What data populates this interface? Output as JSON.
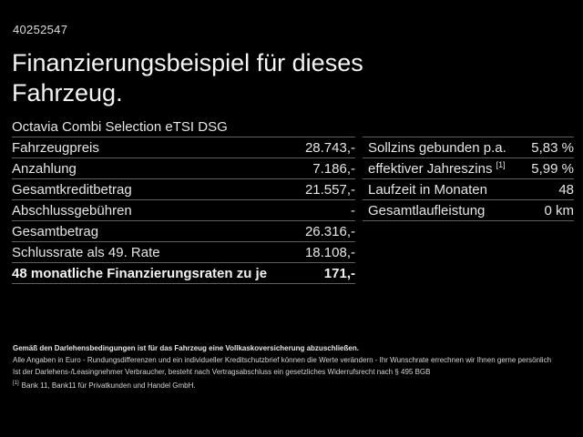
{
  "meta": {
    "vehicle_id": "40252547"
  },
  "header": {
    "title_line1": "Finanzierungsbeispiel für dieses",
    "title_line2": "Fahrzeug.",
    "subtitle": "Octavia Combi Selection eTSI DSG"
  },
  "finance_table": {
    "rows": [
      {
        "label": "Fahrzeugpreis",
        "value": "28.743,-"
      },
      {
        "label": "Anzahlung",
        "value": "7.186,-"
      },
      {
        "label": "Gesamtkreditbetrag",
        "value": "21.557,-"
      },
      {
        "label": "Abschlussgebühren",
        "value": "-"
      },
      {
        "label": "Gesamtbetrag",
        "value": "26.316,-"
      },
      {
        "label": "Schlussrate als 49. Rate",
        "value": "18.108,-"
      }
    ],
    "total_row": {
      "label": "48 monatliche Finanzierungsraten zu je",
      "value": "171,-"
    }
  },
  "conditions_table": {
    "rows": [
      {
        "label": "Sollzins gebunden p.a.",
        "sup": "",
        "value": "5,83 %"
      },
      {
        "label": "effektiver Jahreszins",
        "sup": "[1]",
        "value": "5,99 %"
      },
      {
        "label": "Laufzeit in Monaten",
        "sup": "",
        "value": "48"
      },
      {
        "label": "Gesamtlaufleistung",
        "sup": "",
        "value": "0 km"
      }
    ]
  },
  "disclaimer": {
    "line1": "Gemäß den Darlehensbedingungen ist für das Fahrzeug eine Vollkaskoversicherung abzuschließen.",
    "line2": "Alle Angaben in Euro - Rundungsdifferenzen und ein individueller Kreditschutzbrief können die Werte verändern - Ihr Wunschrate errechnen wir Ihnen gerne persönlich",
    "line3": "Ist der Darlehens-/Leasingnehmer Verbraucher, besteht nach Vertragsabschluss ein gesetzliches Widerrufsrecht nach § 495 BGB",
    "footnote_marker": "[1]",
    "footnote_text": "Bank 11, Bank11 für Privatkunden und Handel GmbH."
  },
  "colors": {
    "background": "#000000",
    "text": "#e9e9e9",
    "separator": "#5f5f5f"
  }
}
